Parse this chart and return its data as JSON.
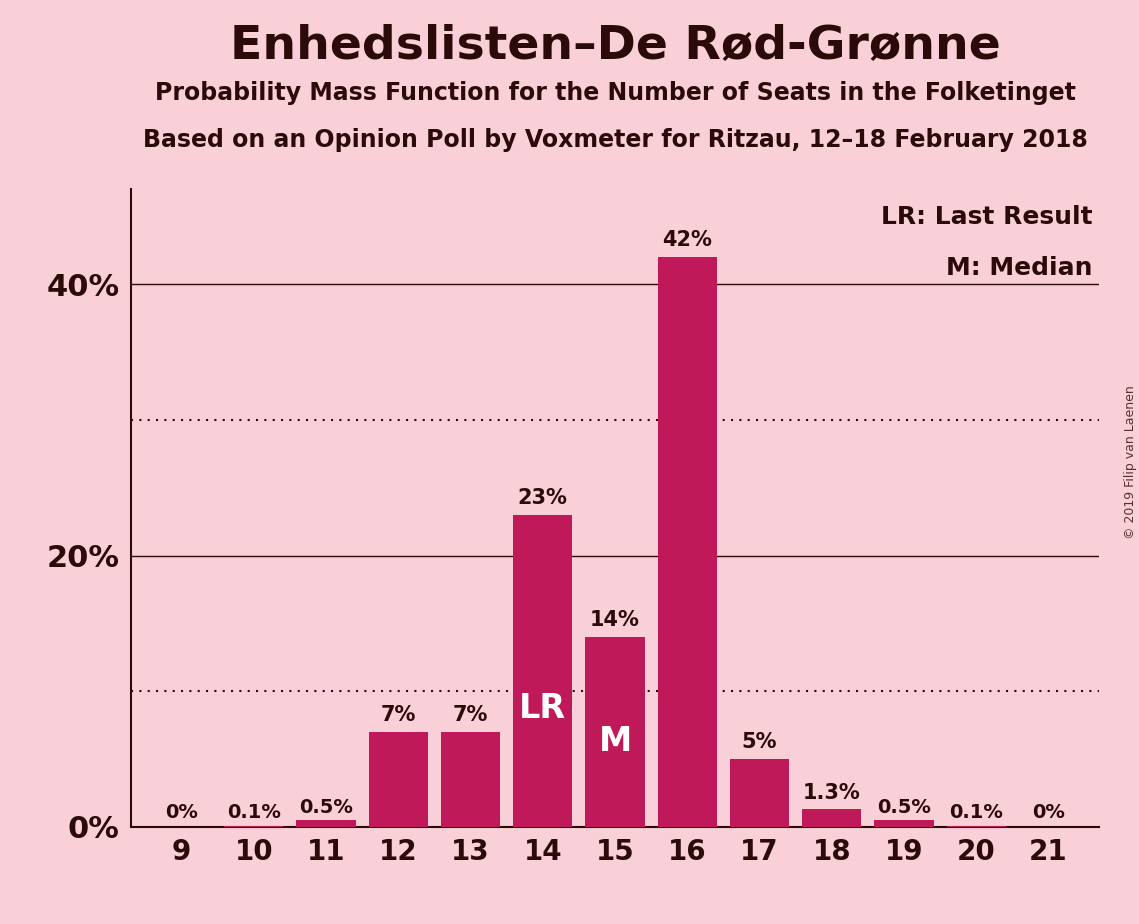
{
  "title": "Enhedslisten–De Rød-Grønne",
  "subtitle1": "Probability Mass Function for the Number of Seats in the Folketinget",
  "subtitle2": "Based on an Opinion Poll by Voxmeter for Ritzau, 12–18 February 2018",
  "seats": [
    9,
    10,
    11,
    12,
    13,
    14,
    15,
    16,
    17,
    18,
    19,
    20,
    21
  ],
  "probabilities": [
    0.0,
    0.1,
    0.5,
    7.0,
    7.0,
    23.0,
    14.0,
    42.0,
    5.0,
    1.3,
    0.5,
    0.1,
    0.0
  ],
  "bar_labels": [
    "0%",
    "0.1%",
    "0.5%",
    "7%",
    "7%",
    "23%",
    "14%",
    "42%",
    "5%",
    "1.3%",
    "0.5%",
    "0.1%",
    "0%"
  ],
  "bar_color": "#C0195A",
  "background_color": "#F9D0D8",
  "text_color": "#2B0A0A",
  "lr_seat": 14,
  "m_seat": 15,
  "ytick_values": [
    0,
    20,
    40
  ],
  "ytick_labels": [
    "0%",
    "20%",
    "40%"
  ],
  "ylim": [
    0,
    47
  ],
  "dotted_lines": [
    10,
    30
  ],
  "copyright": "© 2019 Filip van Laenen",
  "legend_lr": "LR: Last Result",
  "legend_m": "M: Median",
  "bar_width": 0.82
}
